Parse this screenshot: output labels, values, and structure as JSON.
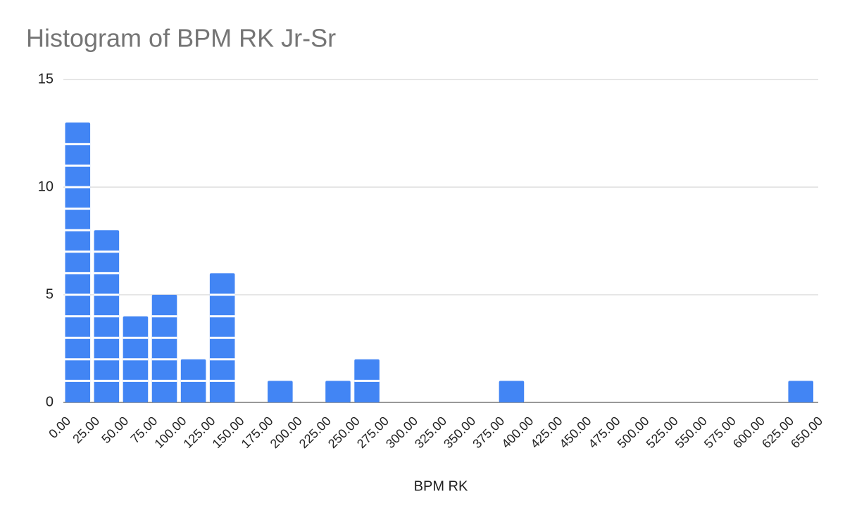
{
  "chart_data": {
    "type": "histogram",
    "title": "Histogram of BPM RK Jr-Sr",
    "x_label": "BPM RK",
    "bins": [
      0,
      25,
      50,
      75,
      100,
      125,
      150,
      175,
      200,
      225,
      250,
      275,
      300,
      325,
      350,
      375,
      400,
      425,
      450,
      475,
      500,
      525,
      550,
      575,
      600,
      625,
      650
    ],
    "values": [
      13,
      8,
      4,
      5,
      2,
      6,
      0,
      1,
      0,
      1,
      2,
      0,
      0,
      0,
      0,
      1,
      0,
      0,
      0,
      0,
      0,
      0,
      0,
      0,
      0,
      1
    ],
    "color": "#4285f4",
    "xlim": [
      0,
      650
    ],
    "xticks": [
      {
        "value": 0,
        "label": "0.00"
      },
      {
        "value": 25,
        "label": "25.00"
      },
      {
        "value": 50,
        "label": "50.00"
      },
      {
        "value": 75,
        "label": "75.00"
      },
      {
        "value": 100,
        "label": "100.00"
      },
      {
        "value": 125,
        "label": "125.00"
      },
      {
        "value": 150,
        "label": "150.00"
      },
      {
        "value": 175,
        "label": "175.00"
      },
      {
        "value": 200,
        "label": "200.00"
      },
      {
        "value": 225,
        "label": "225.00"
      },
      {
        "value": 250,
        "label": "250.00"
      },
      {
        "value": 275,
        "label": "275.00"
      },
      {
        "value": 300,
        "label": "300.00"
      },
      {
        "value": 325,
        "label": "325.00"
      },
      {
        "value": 350,
        "label": "350.00"
      },
      {
        "value": 375,
        "label": "375.00"
      },
      {
        "value": 400,
        "label": "400.00"
      },
      {
        "value": 425,
        "label": "425.00"
      },
      {
        "value": 450,
        "label": "450.00"
      },
      {
        "value": 475,
        "label": "475.00"
      },
      {
        "value": 500,
        "label": "500.00"
      },
      {
        "value": 525,
        "label": "525.00"
      },
      {
        "value": 550,
        "label": "550.00"
      },
      {
        "value": 575,
        "label": "575.00"
      },
      {
        "value": 600,
        "label": "600.00"
      },
      {
        "value": 625,
        "label": "625.00"
      },
      {
        "value": 650,
        "label": "650.00"
      }
    ],
    "ylim": [
      0,
      15
    ],
    "yticks": [
      0,
      5,
      10,
      15
    ],
    "grid": true
  }
}
